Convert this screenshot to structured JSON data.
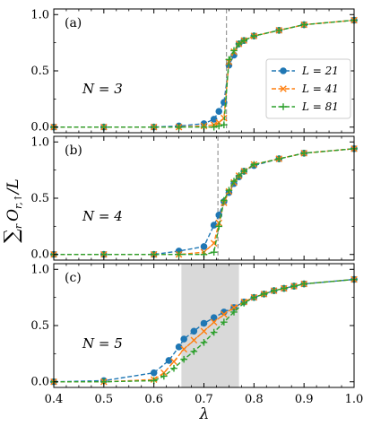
{
  "chart_data": {
    "type": "line",
    "ylabel": "∑r Or,↑/L",
    "xlabel": "λ",
    "xlim": [
      0.4,
      1.0
    ],
    "xticks": [
      "0.4",
      "0.5",
      "0.6",
      "0.7",
      "0.8",
      "0.9",
      "1.0"
    ],
    "yticks": [
      "0.0",
      "0.5",
      "1.0"
    ],
    "ylim": [
      -0.05,
      1.05
    ],
    "legend": {
      "placement": "inside-right (panel a)",
      "entries": [
        "L = 21",
        "L = 41",
        "L = 81"
      ]
    },
    "series_style": [
      {
        "name": "L = 21",
        "color": "#1f77b4",
        "marker": "circle"
      },
      {
        "name": "L = 41",
        "color": "#ff7f0e",
        "marker": "x"
      },
      {
        "name": "L = 81",
        "color": "#2ca02c",
        "marker": "plus"
      }
    ],
    "panels": [
      {
        "label": "(a)",
        "annotation": "N = 3",
        "vline": 0.745,
        "series": [
          {
            "name": "L = 21",
            "x": [
              0.4,
              0.5,
              0.6,
              0.65,
              0.7,
              0.72,
              0.73,
              0.74,
              0.75,
              0.76,
              0.77,
              0.78,
              0.8,
              0.85,
              0.9,
              1.0
            ],
            "values": [
              0.0,
              0.0,
              0.0,
              0.01,
              0.03,
              0.07,
              0.14,
              0.22,
              0.55,
              0.64,
              0.74,
              0.77,
              0.81,
              0.86,
              0.91,
              0.95
            ]
          },
          {
            "name": "L = 41",
            "x": [
              0.4,
              0.5,
              0.6,
              0.65,
              0.7,
              0.72,
              0.73,
              0.74,
              0.75,
              0.76,
              0.77,
              0.78,
              0.8,
              0.85,
              0.9,
              1.0
            ],
            "values": [
              0.0,
              0.0,
              0.0,
              0.0,
              0.01,
              0.02,
              0.04,
              0.08,
              0.58,
              0.67,
              0.74,
              0.77,
              0.81,
              0.86,
              0.91,
              0.95
            ]
          },
          {
            "name": "L = 81",
            "x": [
              0.4,
              0.5,
              0.6,
              0.65,
              0.7,
              0.72,
              0.73,
              0.74,
              0.75,
              0.76,
              0.77,
              0.78,
              0.8,
              0.85,
              0.9,
              1.0
            ],
            "values": [
              0.0,
              0.0,
              0.0,
              0.0,
              0.0,
              0.0,
              0.01,
              0.02,
              0.6,
              0.68,
              0.74,
              0.77,
              0.81,
              0.86,
              0.91,
              0.95
            ]
          }
        ]
      },
      {
        "label": "(b)",
        "annotation": "N = 4",
        "vline": 0.728,
        "series": [
          {
            "name": "L = 21",
            "x": [
              0.4,
              0.5,
              0.6,
              0.65,
              0.7,
              0.72,
              0.73,
              0.74,
              0.75,
              0.76,
              0.77,
              0.78,
              0.8,
              0.85,
              0.9,
              1.0
            ],
            "values": [
              0.0,
              0.0,
              0.0,
              0.03,
              0.07,
              0.26,
              0.35,
              0.47,
              0.55,
              0.63,
              0.69,
              0.74,
              0.79,
              0.85,
              0.9,
              0.94
            ]
          },
          {
            "name": "L = 41",
            "x": [
              0.4,
              0.5,
              0.6,
              0.65,
              0.7,
              0.72,
              0.73,
              0.74,
              0.75,
              0.76,
              0.77,
              0.78,
              0.8,
              0.85,
              0.9,
              1.0
            ],
            "values": [
              0.0,
              0.0,
              0.0,
              0.0,
              0.02,
              0.1,
              0.28,
              0.46,
              0.56,
              0.64,
              0.7,
              0.74,
              0.8,
              0.85,
              0.9,
              0.94
            ]
          },
          {
            "name": "L = 81",
            "x": [
              0.4,
              0.5,
              0.6,
              0.65,
              0.7,
              0.72,
              0.73,
              0.74,
              0.75,
              0.76,
              0.77,
              0.78,
              0.8,
              0.85,
              0.9,
              1.0
            ],
            "values": [
              0.0,
              0.0,
              0.0,
              0.0,
              0.0,
              0.02,
              0.25,
              0.48,
              0.57,
              0.65,
              0.7,
              0.74,
              0.8,
              0.85,
              0.9,
              0.94
            ]
          }
        ]
      },
      {
        "label": "(c)",
        "annotation": "N = 5",
        "shaded": [
          0.655,
          0.77
        ],
        "series": [
          {
            "name": "L = 21",
            "x": [
              0.4,
              0.5,
              0.6,
              0.63,
              0.65,
              0.66,
              0.68,
              0.7,
              0.72,
              0.74,
              0.76,
              0.78,
              0.8,
              0.82,
              0.84,
              0.86,
              0.88,
              0.9,
              1.0
            ],
            "values": [
              0.0,
              0.01,
              0.08,
              0.19,
              0.31,
              0.38,
              0.45,
              0.52,
              0.57,
              0.62,
              0.66,
              0.71,
              0.75,
              0.78,
              0.81,
              0.83,
              0.85,
              0.87,
              0.91
            ]
          },
          {
            "name": "L = 41",
            "x": [
              0.4,
              0.5,
              0.6,
              0.62,
              0.64,
              0.66,
              0.68,
              0.7,
              0.72,
              0.74,
              0.76,
              0.78,
              0.8,
              0.82,
              0.84,
              0.86,
              0.88,
              0.9,
              1.0
            ],
            "values": [
              0.0,
              0.0,
              0.02,
              0.08,
              0.18,
              0.29,
              0.37,
              0.45,
              0.53,
              0.6,
              0.66,
              0.71,
              0.75,
              0.78,
              0.81,
              0.83,
              0.85,
              0.87,
              0.91
            ]
          },
          {
            "name": "L = 81",
            "x": [
              0.4,
              0.5,
              0.6,
              0.62,
              0.64,
              0.66,
              0.68,
              0.7,
              0.72,
              0.74,
              0.76,
              0.78,
              0.8,
              0.82,
              0.84,
              0.86,
              0.88,
              0.9,
              1.0
            ],
            "values": [
              0.0,
              0.0,
              0.01,
              0.05,
              0.12,
              0.2,
              0.27,
              0.35,
              0.44,
              0.53,
              0.62,
              0.7,
              0.75,
              0.78,
              0.81,
              0.83,
              0.85,
              0.87,
              0.91
            ]
          }
        ]
      }
    ]
  }
}
